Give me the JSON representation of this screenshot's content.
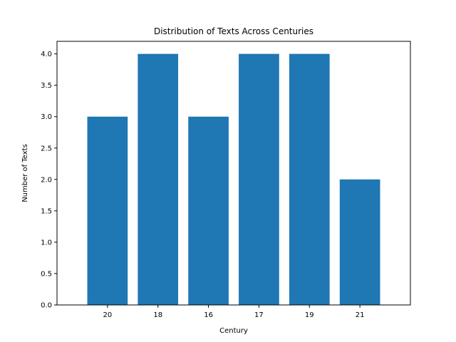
{
  "chart_data": {
    "type": "bar",
    "title": "Distribution of Texts Across Centuries",
    "xlabel": "Century",
    "ylabel": "Number of Texts",
    "categories": [
      "20",
      "18",
      "16",
      "17",
      "19",
      "21"
    ],
    "values": [
      3,
      4,
      3,
      4,
      4,
      2
    ],
    "ylim": [
      0,
      4.2
    ],
    "yticks": [
      "0.0",
      "0.5",
      "1.0",
      "1.5",
      "2.0",
      "2.5",
      "3.0",
      "3.5",
      "4.0"
    ],
    "bar_color": "#1f77b4",
    "grid": false,
    "legend": "none"
  }
}
